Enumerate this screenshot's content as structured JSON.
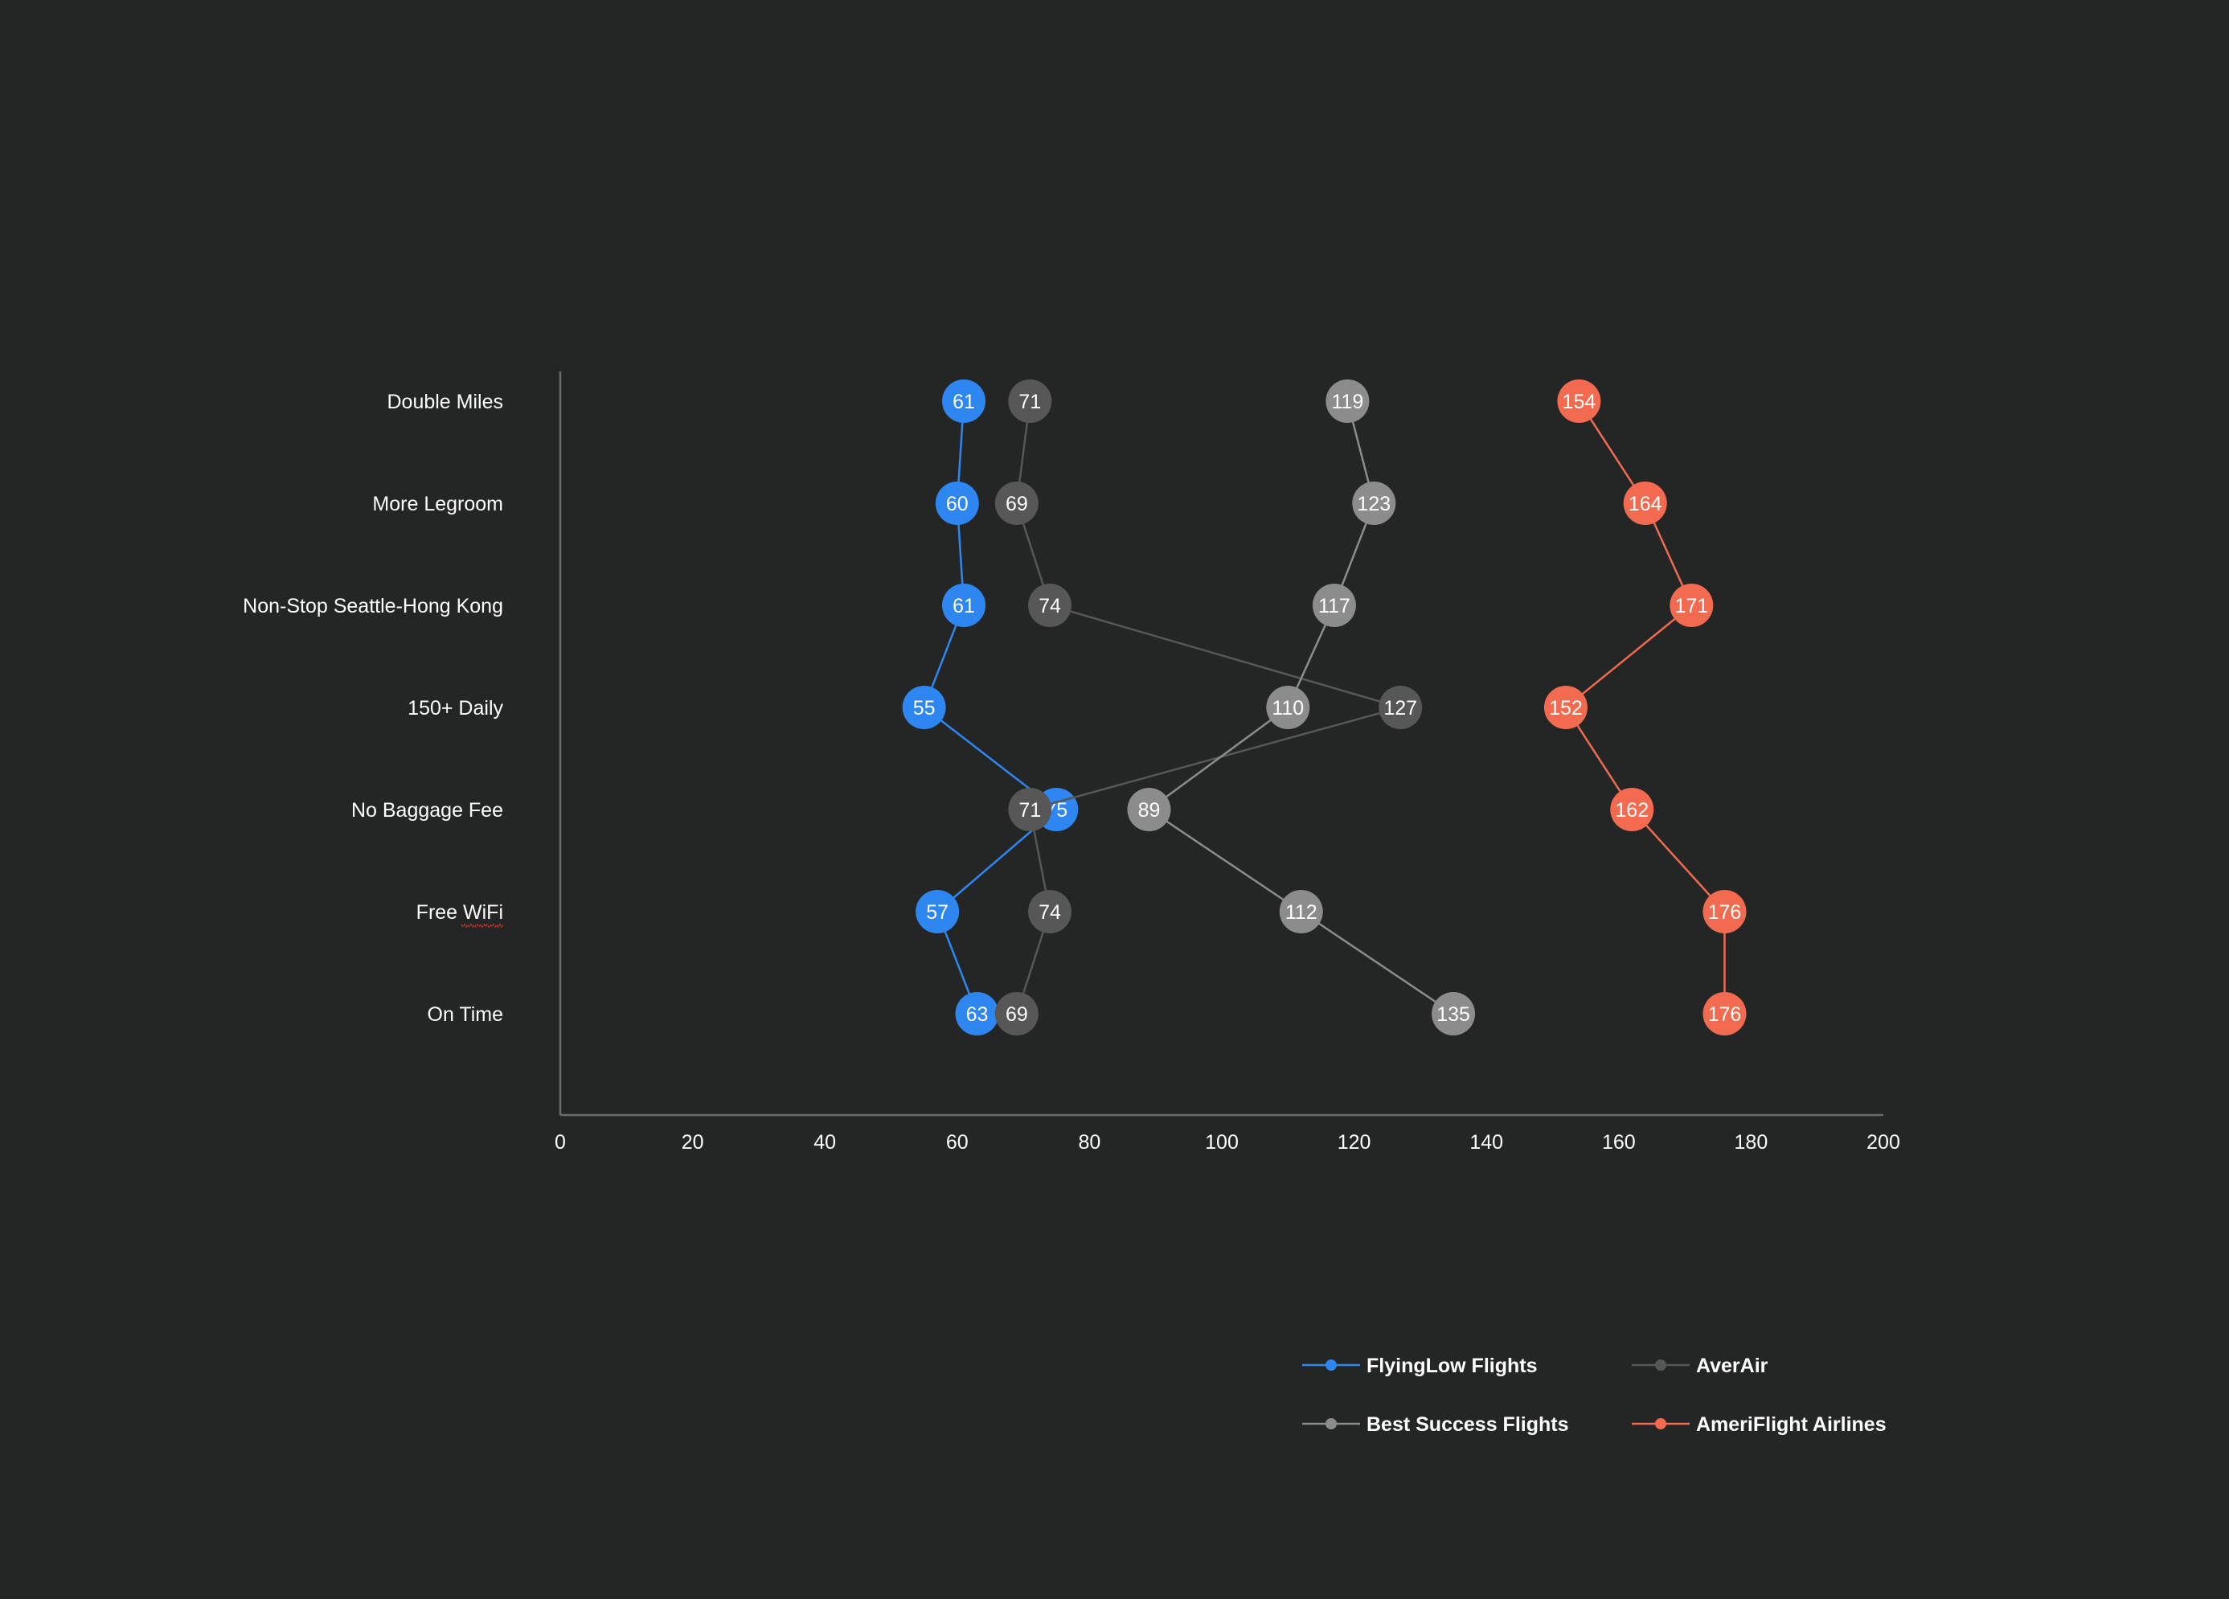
{
  "chart_data": {
    "type": "scatter",
    "subtype": "dot-plot-connected",
    "categories": [
      "Double Miles",
      "More Legroom",
      "Non-Stop Seattle-Hong Kong",
      "150+ Daily",
      "No Baggage Fee",
      "Free WiFi",
      "On Time"
    ],
    "series": [
      {
        "name": "FlyingLow Flights",
        "color": "#2e86f0",
        "values": [
          61,
          60,
          61,
          55,
          75,
          57,
          63
        ]
      },
      {
        "name": "AverAir",
        "color": "#575757",
        "values": [
          71,
          69,
          74,
          127,
          71,
          74,
          69
        ]
      },
      {
        "name": "Best Success Flights",
        "color": "#8c8c8c",
        "values": [
          119,
          123,
          117,
          110,
          89,
          112,
          135
        ]
      },
      {
        "name": "AmeriFlight Airlines",
        "color": "#f26b50",
        "values": [
          154,
          164,
          171,
          152,
          162,
          176,
          176
        ]
      }
    ],
    "xlim": [
      0,
      200
    ],
    "xticks": [
      "0",
      "20",
      "40",
      "60",
      "80",
      "100",
      "120",
      "140",
      "160",
      "180",
      "200"
    ],
    "grid": false,
    "legend_position": "bottom-right",
    "draw_order": [
      "FlyingLow Flights",
      "AverAir",
      "Best Success Flights",
      "AmeriFlight Airlines"
    ],
    "xlabel": "",
    "ylabel": "",
    "title": ""
  },
  "axis_color": "#6b6b6b"
}
